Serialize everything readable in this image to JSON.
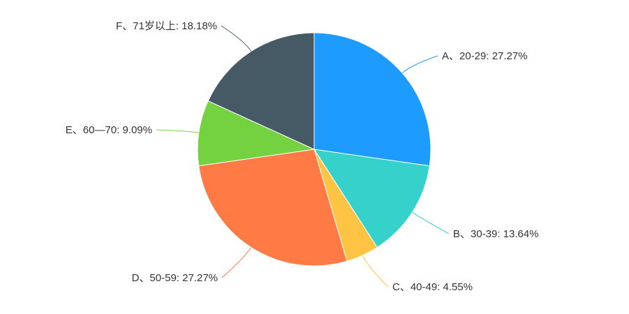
{
  "chart_data": {
    "type": "pie",
    "slices": [
      {
        "category": "A、20-29",
        "value": 27.27,
        "label": "A、20-29: 27.27%",
        "color": "#1E9BFF"
      },
      {
        "category": "B、30-39",
        "value": 13.64,
        "label": "B、30-39: 13.64%",
        "color": "#37D1CB"
      },
      {
        "category": "C、40-49",
        "value": 4.55,
        "label": "C、40-49: 4.55%",
        "color": "#FFC444"
      },
      {
        "category": "D、50-59",
        "value": 27.27,
        "label": "D、50-59: 27.27%",
        "color": "#FF7A45"
      },
      {
        "category": "E、60—70",
        "value": 9.09,
        "label": "E、60—70: 9.09%",
        "color": "#74D140"
      },
      {
        "category": "F、71岁以上",
        "value": 18.18,
        "label": "F、71岁以上: 18.18%",
        "color": "#455A64"
      }
    ],
    "start_angle": "12 o'clock",
    "direction": "clockwise",
    "legend": "none",
    "labels": "outside with leader lines"
  }
}
